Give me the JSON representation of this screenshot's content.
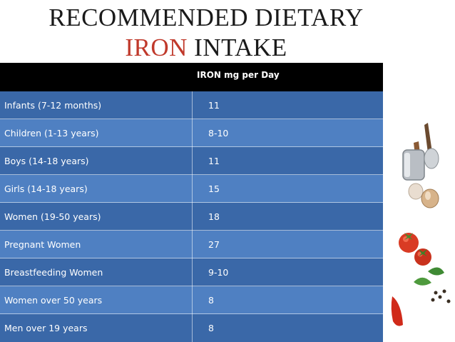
{
  "title": {
    "line1": "RECOMMENDED DIETARY",
    "line2_accent": "IRON",
    "line2_rest": " INTAKE"
  },
  "table": {
    "header": {
      "col1": "",
      "col2": "IRON mg per Day"
    },
    "rows": [
      {
        "group": "Infants (7-12 months)",
        "iron": "11"
      },
      {
        "group": "Children (1-13 years)",
        "iron": "8-10"
      },
      {
        "group": "Boys  (14-18 years)",
        "iron": "11"
      },
      {
        "group": "Girls (14-18 years)",
        "iron": "15"
      },
      {
        "group": "Women (19-50 years)",
        "iron": "18"
      },
      {
        "group": "Pregnant Women",
        "iron": "27"
      },
      {
        "group": "Breastfeeding Women",
        "iron": "9-10"
      },
      {
        "group": "Women over 50 years",
        "iron": "8"
      },
      {
        "group": "Men over 19 years",
        "iron": "8"
      }
    ]
  },
  "colors": {
    "accent": "#c0392b",
    "header_bg": "#000000",
    "row_dark": "#3a68a8",
    "row_light": "#4f80c2"
  },
  "decoration": {
    "icon": "vegetables-and-kitchen-tools-icon"
  }
}
